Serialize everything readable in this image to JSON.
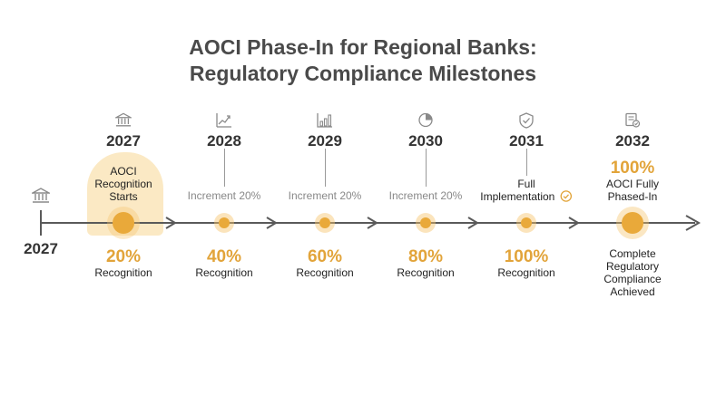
{
  "title": {
    "line1": "AOCI Phase-In for Regional Banks:",
    "line2": "Regulatory Compliance Milestones"
  },
  "start": {
    "year": "2027",
    "icon": "bank-icon"
  },
  "milestones": [
    {
      "year": "2027",
      "icon": "bank-icon",
      "top_label": [
        "AOCI",
        "Recognition",
        "Starts"
      ],
      "pct": "20%",
      "sub": "Recognition"
    },
    {
      "year": "2028",
      "icon": "chart-up-icon",
      "top_label": [
        "Increment 20%"
      ],
      "pct": "40%",
      "sub": "Recognition"
    },
    {
      "year": "2029",
      "icon": "bar-chart-icon",
      "top_label": [
        "Increment 20%"
      ],
      "pct": "60%",
      "sub": "Recognition"
    },
    {
      "year": "2030",
      "icon": "pie-chart-icon",
      "top_label": [
        "Increment 20%"
      ],
      "pct": "80%",
      "sub": "Recognition"
    },
    {
      "year": "2031",
      "icon": "shield-check-icon",
      "top_label": [
        "Full",
        "Implementation"
      ],
      "pct": "100%",
      "sub": "Recognition"
    },
    {
      "year": "2032",
      "icon": "document-check-icon",
      "top_pct": "100%",
      "top_label": [
        "AOCI Fully",
        "Phased-In"
      ],
      "bottom_label": [
        "Complete",
        "Regulatory",
        "Compliance",
        "Achieved"
      ]
    }
  ],
  "colors": {
    "accent": "#e2a43a",
    "highlight": "#fbe9c4",
    "line": "#5a5a5a",
    "icon": "#8a8a8a"
  }
}
